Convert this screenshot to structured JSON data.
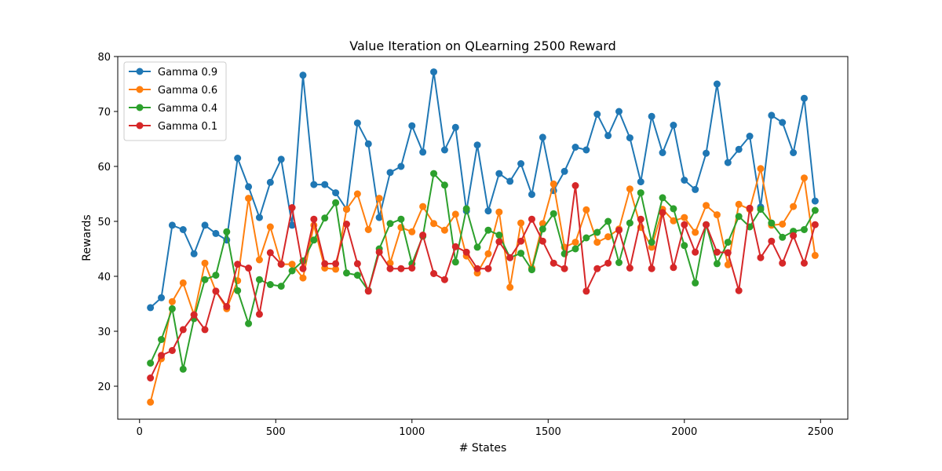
{
  "chart_data": {
    "type": "line",
    "title": "Value Iteration on QLearning 2500  Reward",
    "xlabel": "# States",
    "ylabel": "Rewards",
    "xlim": [
      -80,
      2600
    ],
    "ylim": [
      14,
      80
    ],
    "xticks": [
      0,
      500,
      1000,
      1500,
      2000,
      2500
    ],
    "yticks": [
      20,
      30,
      40,
      50,
      60,
      70,
      80
    ],
    "grid": false,
    "legend_position": "top-left",
    "x": [
      40,
      80,
      120,
      160,
      200,
      240,
      280,
      320,
      360,
      400,
      440,
      480,
      520,
      560,
      600,
      640,
      680,
      720,
      760,
      800,
      840,
      880,
      920,
      960,
      1000,
      1040,
      1080,
      1120,
      1160,
      1200,
      1240,
      1280,
      1320,
      1360,
      1400,
      1440,
      1480,
      1520,
      1560,
      1600,
      1640,
      1680,
      1720,
      1760,
      1800,
      1840,
      1880,
      1920,
      1960,
      2000,
      2040,
      2080,
      2120,
      2160,
      2200,
      2240,
      2280,
      2320,
      2360,
      2400,
      2440,
      2480
    ],
    "series": [
      {
        "name": "Gamma 0.9",
        "color": "#1f77b4",
        "values": [
          34.3,
          36.1,
          49.3,
          48.5,
          44.1,
          49.3,
          47.8,
          46.6,
          61.5,
          56.3,
          50.7,
          57.1,
          61.3,
          49.3,
          76.6,
          56.7,
          56.7,
          55.2,
          52.2,
          67.9,
          64.1,
          50.7,
          58.9,
          60.0,
          67.4,
          62.6,
          77.2,
          63.0,
          67.1,
          51.9,
          63.9,
          51.9,
          58.7,
          57.3,
          60.5,
          54.9,
          65.3,
          55.6,
          59.1,
          63.5,
          63.0,
          69.5,
          65.6,
          70.0,
          65.2,
          57.2,
          69.1,
          62.5,
          67.5,
          57.5,
          55.8,
          62.4,
          75.0,
          60.7,
          63.1,
          65.5,
          52.6,
          69.3,
          68.0,
          62.5,
          72.4,
          53.7
        ]
      },
      {
        "name": "Gamma 0.6",
        "color": "#ff7f0e",
        "values": [
          17.1,
          25.0,
          35.4,
          38.8,
          33.0,
          42.4,
          37.3,
          34.1,
          39.2,
          54.2,
          43.0,
          49.0,
          42.2,
          42.2,
          39.7,
          49.3,
          41.5,
          41.3,
          52.2,
          55.0,
          48.5,
          54.2,
          42.4,
          48.9,
          48.1,
          52.7,
          49.6,
          48.4,
          51.3,
          43.7,
          40.6,
          44.1,
          51.7,
          38.0,
          49.7,
          41.5,
          49.6,
          56.8,
          45.3,
          46.2,
          52.1,
          46.2,
          47.2,
          48.6,
          55.9,
          48.9,
          45.3,
          52.2,
          50.1,
          50.7,
          48.0,
          52.9,
          51.2,
          42.1,
          53.1,
          52.2,
          59.6,
          49.3,
          49.5,
          52.7,
          57.9,
          43.8
        ]
      },
      {
        "name": "Gamma 0.4",
        "color": "#2ca02c",
        "values": [
          24.2,
          28.5,
          34.1,
          23.1,
          32.3,
          39.4,
          40.2,
          48.1,
          37.4,
          31.4,
          39.4,
          38.5,
          38.2,
          41.0,
          42.8,
          46.6,
          50.6,
          53.4,
          40.6,
          40.2,
          37.4,
          45.0,
          49.6,
          50.4,
          42.3,
          47.3,
          58.7,
          56.6,
          42.6,
          52.3,
          45.3,
          48.4,
          47.5,
          43.4,
          44.2,
          41.2,
          48.6,
          51.4,
          44.1,
          45.0,
          47.0,
          48.0,
          50.0,
          42.5,
          49.7,
          55.2,
          46.2,
          54.3,
          52.3,
          45.6,
          38.8,
          49.4,
          42.3,
          46.2,
          50.9,
          49.0,
          52.2,
          49.7,
          47.1,
          48.2,
          48.5,
          52.0
        ]
      },
      {
        "name": "Gamma 0.1",
        "color": "#d62728",
        "values": [
          21.5,
          25.6,
          26.5,
          30.3,
          33.0,
          30.3,
          37.3,
          34.5,
          42.2,
          41.5,
          33.1,
          44.3,
          42.2,
          52.5,
          41.4,
          50.4,
          42.3,
          42.3,
          49.5,
          42.3,
          37.3,
          44.4,
          41.4,
          41.4,
          41.5,
          47.5,
          40.5,
          39.4,
          45.4,
          44.4,
          41.4,
          41.4,
          46.3,
          43.4,
          46.4,
          50.4,
          46.4,
          42.4,
          41.4,
          56.5,
          37.3,
          41.4,
          42.4,
          48.4,
          41.5,
          50.4,
          41.4,
          51.6,
          41.6,
          49.4,
          44.4,
          49.4,
          44.4,
          44.3,
          37.4,
          52.4,
          43.4,
          46.4,
          42.4,
          47.4,
          42.4,
          49.4
        ]
      }
    ]
  }
}
